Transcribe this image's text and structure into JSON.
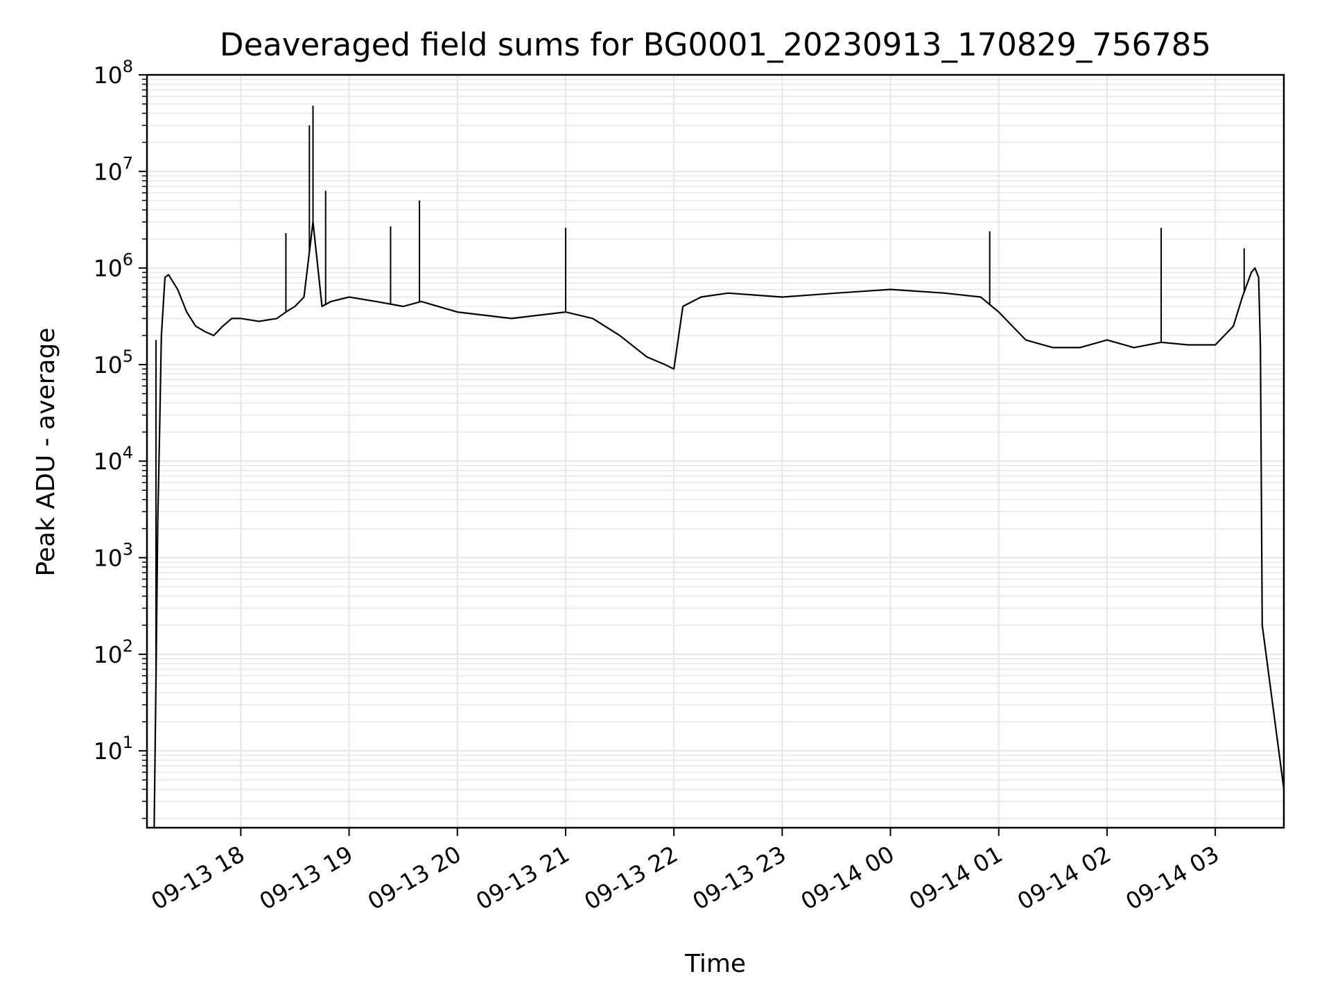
{
  "chart_data": {
    "type": "line",
    "title": "Deaveraged field sums for BG0001_20230913_170829_756785",
    "xlabel": "Time",
    "ylabel": "Peak ADU - average",
    "y_scale": "log",
    "ylim": [
      1.6,
      100000000
    ],
    "y_ticks": [
      {
        "value": 10,
        "base": "10",
        "exp": "1"
      },
      {
        "value": 100,
        "base": "10",
        "exp": "2"
      },
      {
        "value": 1000,
        "base": "10",
        "exp": "3"
      },
      {
        "value": 10000,
        "base": "10",
        "exp": "4"
      },
      {
        "value": 100000,
        "base": "10",
        "exp": "5"
      },
      {
        "value": 1000000,
        "base": "10",
        "exp": "6"
      },
      {
        "value": 10000000,
        "base": "10",
        "exp": "7"
      },
      {
        "value": 100000000,
        "base": "10",
        "exp": "8"
      }
    ],
    "xlim": [
      "2023-09-13 17:08",
      "2023-09-14 03:38"
    ],
    "x_ticks": [
      {
        "time": "2023-09-13 18:00",
        "label": "09-13 18"
      },
      {
        "time": "2023-09-13 19:00",
        "label": "09-13 19"
      },
      {
        "time": "2023-09-13 20:00",
        "label": "09-13 20"
      },
      {
        "time": "2023-09-13 21:00",
        "label": "09-13 21"
      },
      {
        "time": "2023-09-13 22:00",
        "label": "09-13 22"
      },
      {
        "time": "2023-09-13 23:00",
        "label": "09-13 23"
      },
      {
        "time": "2023-09-14 00:00",
        "label": "09-14 00"
      },
      {
        "time": "2023-09-14 01:00",
        "label": "09-14 01"
      },
      {
        "time": "2023-09-14 02:00",
        "label": "09-14 02"
      },
      {
        "time": "2023-09-14 03:00",
        "label": "09-14 03"
      }
    ],
    "grid": true,
    "grid_color": "#e6e6e6",
    "line_color": "#000000",
    "series": [
      {
        "x": [
          "2023-09-13 17:12",
          "2023-09-13 17:13",
          "2023-09-13 17:14",
          "2023-09-13 17:15",
          "2023-09-13 17:16",
          "2023-09-13 17:18",
          "2023-09-13 17:20",
          "2023-09-13 17:25",
          "2023-09-13 17:30",
          "2023-09-13 17:35",
          "2023-09-13 17:40",
          "2023-09-13 17:45",
          "2023-09-13 17:50",
          "2023-09-13 17:55",
          "2023-09-13 18:00",
          "2023-09-13 18:10",
          "2023-09-13 18:20",
          "2023-09-13 18:25",
          "2023-09-13 18:30",
          "2023-09-13 18:35",
          "2023-09-13 18:40",
          "2023-09-13 18:45",
          "2023-09-13 18:50",
          "2023-09-13 19:00",
          "2023-09-13 19:15",
          "2023-09-13 19:30",
          "2023-09-13 19:40",
          "2023-09-13 20:00",
          "2023-09-13 20:30",
          "2023-09-13 21:00",
          "2023-09-13 21:15",
          "2023-09-13 21:30",
          "2023-09-13 21:45",
          "2023-09-13 21:55",
          "2023-09-13 22:00",
          "2023-09-13 22:05",
          "2023-09-13 22:15",
          "2023-09-13 22:30",
          "2023-09-13 23:00",
          "2023-09-13 23:30",
          "2023-09-14 00:00",
          "2023-09-14 00:30",
          "2023-09-14 00:50",
          "2023-09-14 01:00",
          "2023-09-14 01:15",
          "2023-09-14 01:30",
          "2023-09-14 01:45",
          "2023-09-14 02:00",
          "2023-09-14 02:15",
          "2023-09-14 02:30",
          "2023-09-14 02:45",
          "2023-09-14 03:00",
          "2023-09-14 03:10",
          "2023-09-14 03:15",
          "2023-09-14 03:20",
          "2023-09-14 03:22",
          "2023-09-14 03:24",
          "2023-09-14 03:25",
          "2023-09-14 03:26",
          "2023-09-14 03:38"
        ],
        "values": [
          1.6,
          55,
          2500,
          20000,
          200000,
          800000,
          850000,
          600000,
          350000,
          250000,
          220000,
          200000,
          250000,
          300000,
          300000,
          280000,
          300000,
          350000,
          400000,
          500000,
          3000000,
          400000,
          450000,
          500000,
          450000,
          400000,
          450000,
          350000,
          300000,
          350000,
          300000,
          200000,
          120000,
          100000,
          90000,
          400000,
          500000,
          550000,
          500000,
          550000,
          600000,
          550000,
          500000,
          350000,
          180000,
          150000,
          150000,
          180000,
          150000,
          170000,
          160000,
          160000,
          250000,
          500000,
          900000,
          1000000,
          800000,
          150000,
          200,
          4
        ]
      }
    ],
    "spikes": [
      {
        "x": "2023-09-13 17:13",
        "y": 180000
      },
      {
        "x": "2023-09-13 18:25",
        "y": 2300000
      },
      {
        "x": "2023-09-13 18:38",
        "y": 30000000
      },
      {
        "x": "2023-09-13 18:40",
        "y": 48000000
      },
      {
        "x": "2023-09-13 18:47",
        "y": 6300000
      },
      {
        "x": "2023-09-13 19:23",
        "y": 2700000
      },
      {
        "x": "2023-09-13 19:39",
        "y": 5000000
      },
      {
        "x": "2023-09-13 21:00",
        "y": 2600000
      },
      {
        "x": "2023-09-14 00:55",
        "y": 2400000
      },
      {
        "x": "2023-09-14 02:30",
        "y": 2600000
      },
      {
        "x": "2023-09-14 03:16",
        "y": 1600000
      }
    ]
  }
}
